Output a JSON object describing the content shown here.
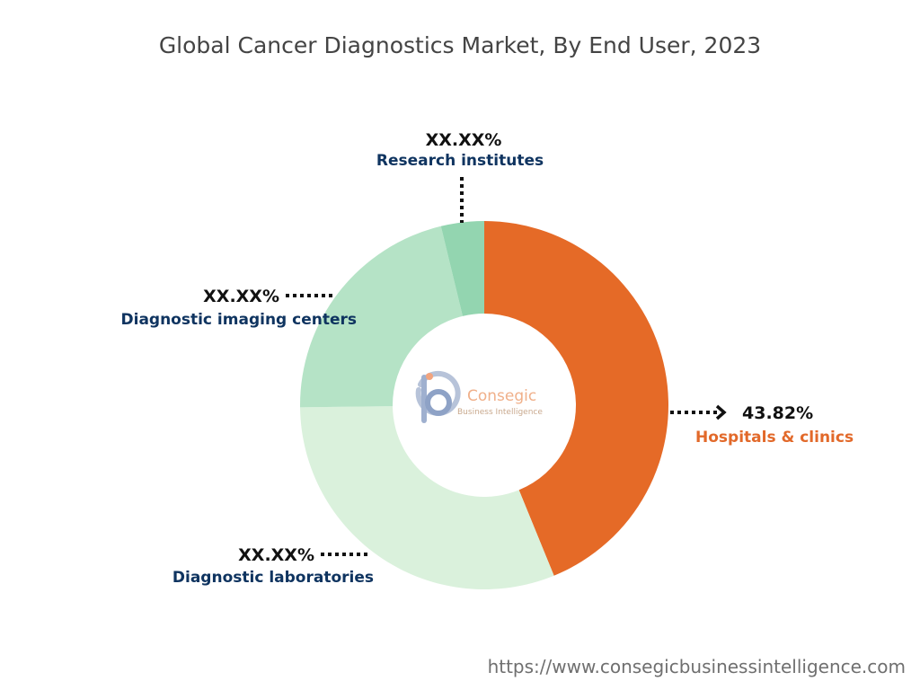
{
  "chart_data": {
    "type": "pie",
    "title": "Global Cancer Diagnostics Market, By End User, 2023",
    "slices": [
      {
        "name": "Hospitals & clinics",
        "value": 43.82,
        "label": "43.82%",
        "color": "#e56a27"
      },
      {
        "name": "Diagnostic laboratories",
        "value": 31.0,
        "label": "XX.XX%",
        "color": "#daf1dc"
      },
      {
        "name": "Diagnostic imaging centers",
        "value": 21.4,
        "label": "XX.XX%",
        "color": "#b5e3c6"
      },
      {
        "name": "Research institutes",
        "value": 3.78,
        "label": "XX.XX%",
        "color": "#93d5b0"
      }
    ],
    "legend": "none"
  },
  "logo": {
    "name": "Consegic",
    "tagline": "Business Intelligence"
  },
  "footer": {
    "url": "https://www.consegicbusinessintelligence.com"
  }
}
